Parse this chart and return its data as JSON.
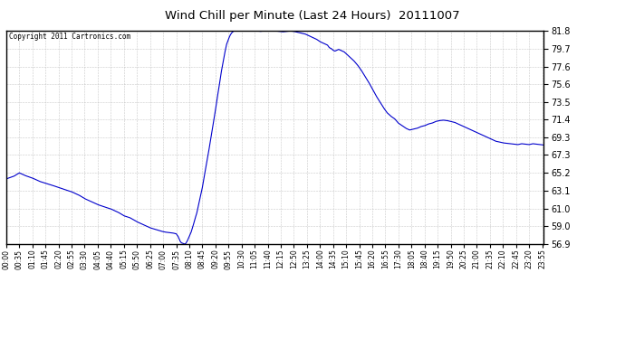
{
  "title": "Wind Chill per Minute (Last 24 Hours)  20111007",
  "copyright_text": "Copyright 2011 Cartronics.com",
  "line_color": "#0000CC",
  "background_color": "#ffffff",
  "plot_bg_color": "#ffffff",
  "grid_color": "#bbbbbb",
  "ylim": [
    56.9,
    81.8
  ],
  "yticks": [
    56.9,
    59.0,
    61.0,
    63.1,
    65.2,
    67.3,
    69.3,
    71.4,
    73.5,
    75.6,
    77.6,
    79.7,
    81.8
  ],
  "xtick_labels": [
    "00:00",
    "00:35",
    "01:10",
    "01:45",
    "02:20",
    "02:55",
    "03:30",
    "04:05",
    "04:40",
    "05:15",
    "05:50",
    "06:25",
    "07:00",
    "07:35",
    "08:10",
    "08:45",
    "09:20",
    "09:55",
    "10:30",
    "11:05",
    "11:40",
    "12:15",
    "12:50",
    "13:25",
    "14:00",
    "14:35",
    "15:10",
    "15:45",
    "16:20",
    "16:55",
    "17:30",
    "18:05",
    "18:40",
    "19:15",
    "19:50",
    "20:25",
    "21:00",
    "21:35",
    "22:10",
    "22:45",
    "23:20",
    "23:55"
  ],
  "n_points": 1440,
  "key_points": {
    "0": 64.5,
    "20": 64.8,
    "35": 65.2,
    "50": 64.9,
    "70": 64.6,
    "90": 64.2,
    "105": 64.0,
    "120": 63.8,
    "140": 63.5,
    "160": 63.2,
    "175": 63.0,
    "195": 62.6,
    "210": 62.2,
    "230": 61.8,
    "245": 61.5,
    "265": 61.2,
    "280": 61.0,
    "300": 60.6,
    "315": 60.2,
    "330": 60.0,
    "350": 59.5,
    "365": 59.2,
    "385": 58.8,
    "400": 58.6,
    "415": 58.4,
    "425": 58.3,
    "435": 58.25,
    "445": 58.2,
    "450": 58.15,
    "455": 58.1,
    "460": 57.8,
    "463": 57.5,
    "466": 57.2,
    "469": 57.05,
    "472": 57.0,
    "475": 56.95,
    "478": 56.9,
    "481": 57.0,
    "485": 57.3,
    "490": 57.8,
    "495": 58.3,
    "500": 59.0,
    "505": 59.8,
    "510": 60.5,
    "515": 61.5,
    "520": 62.5,
    "525": 63.5,
    "530": 64.8,
    "535": 66.0,
    "540": 67.2,
    "545": 68.5,
    "550": 69.8,
    "555": 71.2,
    "560": 72.5,
    "565": 74.0,
    "570": 75.3,
    "575": 76.8,
    "580": 78.0,
    "585": 79.2,
    "590": 80.2,
    "595": 80.8,
    "600": 81.3,
    "605": 81.6,
    "610": 81.75,
    "620": 81.8,
    "630": 81.8,
    "640": 81.75,
    "650": 81.8,
    "660": 81.8,
    "670": 81.75,
    "680": 81.7,
    "690": 81.75,
    "700": 81.8,
    "710": 81.78,
    "720": 81.75,
    "730": 81.7,
    "740": 81.65,
    "750": 81.7,
    "760": 81.75,
    "770": 81.7,
    "780": 81.6,
    "790": 81.5,
    "800": 81.4,
    "810": 81.2,
    "820": 81.0,
    "830": 80.8,
    "840": 80.5,
    "850": 80.3,
    "860": 80.1,
    "865": 79.8,
    "870": 79.7,
    "875": 79.5,
    "880": 79.4,
    "885": 79.5,
    "890": 79.6,
    "895": 79.5,
    "900": 79.4,
    "905": 79.3,
    "910": 79.1,
    "920": 78.7,
    "930": 78.3,
    "940": 77.8,
    "950": 77.2,
    "960": 76.5,
    "970": 75.8,
    "980": 75.0,
    "990": 74.2,
    "1000": 73.5,
    "1010": 72.8,
    "1020": 72.2,
    "1030": 71.8,
    "1040": 71.5,
    "1050": 71.0,
    "1060": 70.7,
    "1070": 70.4,
    "1075": 70.3,
    "1080": 70.2,
    "1090": 70.3,
    "1100": 70.4,
    "1110": 70.6,
    "1120": 70.7,
    "1130": 70.9,
    "1140": 71.0,
    "1150": 71.2,
    "1160": 71.3,
    "1170": 71.35,
    "1180": 71.3,
    "1190": 71.2,
    "1200": 71.1,
    "1210": 70.9,
    "1220": 70.7,
    "1230": 70.5,
    "1240": 70.3,
    "1250": 70.1,
    "1260": 69.9,
    "1270": 69.7,
    "1280": 69.5,
    "1290": 69.3,
    "1300": 69.1,
    "1310": 68.9,
    "1320": 68.8,
    "1330": 68.7,
    "1340": 68.65,
    "1350": 68.6,
    "1360": 68.55,
    "1370": 68.5,
    "1380": 68.6,
    "1390": 68.55,
    "1400": 68.5,
    "1410": 68.6,
    "1420": 68.55,
    "1430": 68.5,
    "1439": 68.45
  }
}
